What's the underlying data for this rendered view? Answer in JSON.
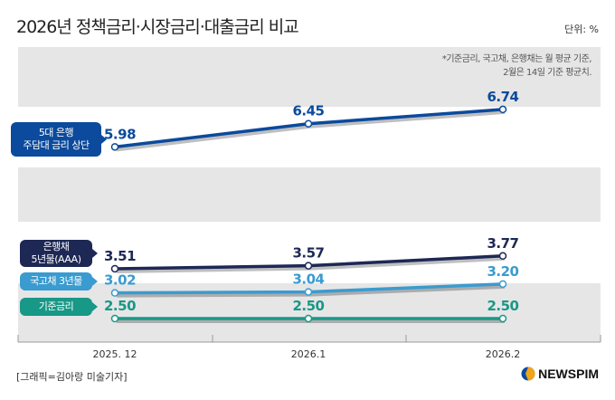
{
  "header": {
    "title": "2026년 정책금리·시장금리·대출금리 비교",
    "unit": "단위: %"
  },
  "note": [
    "*기준금리, 국고채, 은행채는 월 평균 기준,",
    "2월은 14일 기준 평균치."
  ],
  "footer": {
    "credit": "[그래픽=김아랑 미술기자]",
    "logo": "NEWSPIM"
  },
  "chart_data": {
    "type": "line",
    "categories": [
      "2025. 12",
      "2026.1",
      "2026.2"
    ],
    "grid": false,
    "series": [
      {
        "name": "5대 은행 주담대 금리 상단",
        "label_lines": [
          "5대 은행",
          "주담대 금리 상단"
        ],
        "values": [
          5.98,
          6.45,
          6.74
        ],
        "color": "#0b4a9c"
      },
      {
        "name": "은행채 5년물(AAA)",
        "label_lines": [
          "은행채",
          "5년물(AAA)"
        ],
        "values": [
          3.51,
          3.57,
          3.77
        ],
        "color": "#1d2855"
      },
      {
        "name": "국고채 3년물",
        "label_lines": [
          "국고채 3년물"
        ],
        "values": [
          3.02,
          3.04,
          3.2
        ],
        "color": "#3a9bd0"
      },
      {
        "name": "기준금리",
        "label_lines": [
          "기준금리"
        ],
        "values": [
          2.5,
          2.5,
          2.5
        ],
        "color": "#189887"
      }
    ]
  }
}
